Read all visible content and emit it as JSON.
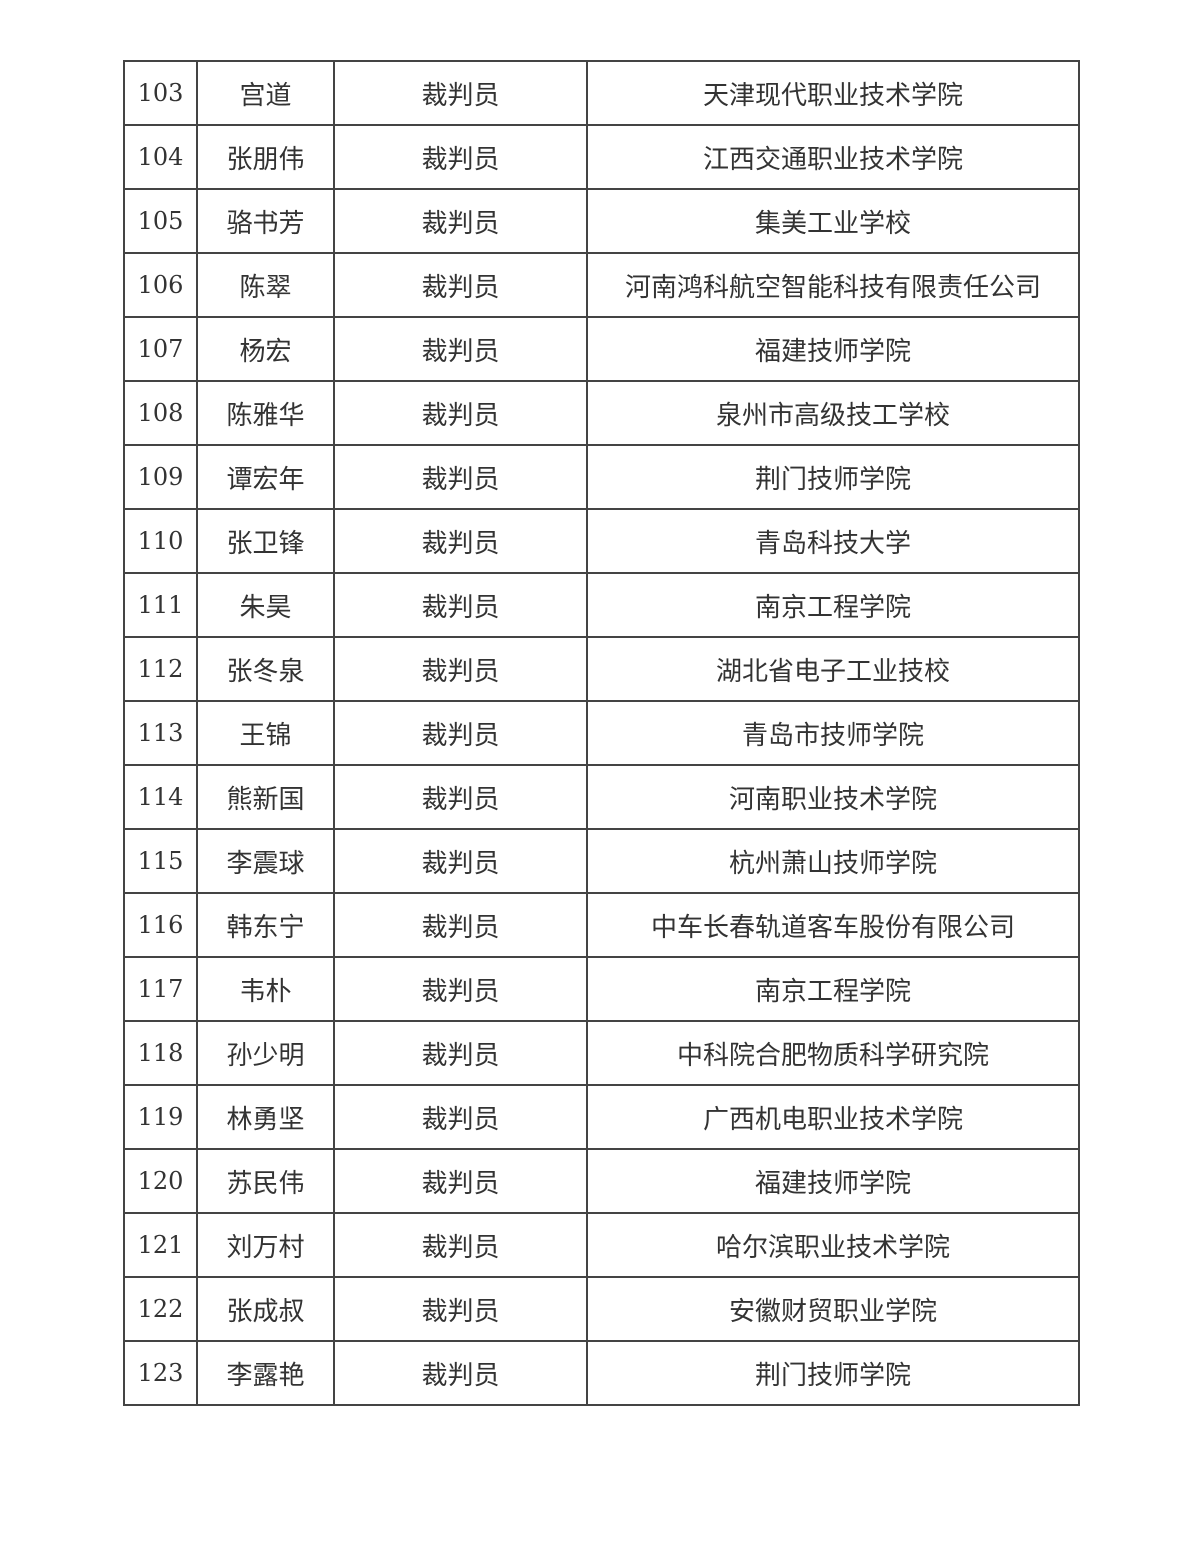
{
  "rows": [
    {
      "no": "103",
      "name": "宫道",
      "role": "裁判员",
      "org": "天津现代职业技术学院"
    },
    {
      "no": "104",
      "name": "张朋伟",
      "role": "裁判员",
      "org": "江西交通职业技术学院"
    },
    {
      "no": "105",
      "name": "骆书芳",
      "role": "裁判员",
      "org": "集美工业学校"
    },
    {
      "no": "106",
      "name": "陈翠",
      "role": "裁判员",
      "org": "河南鸿科航空智能科技有限责任公司"
    },
    {
      "no": "107",
      "name": "杨宏",
      "role": "裁判员",
      "org": "福建技师学院"
    },
    {
      "no": "108",
      "name": "陈雅华",
      "role": "裁判员",
      "org": "泉州市高级技工学校"
    },
    {
      "no": "109",
      "name": "谭宏年",
      "role": "裁判员",
      "org": "荆门技师学院"
    },
    {
      "no": "110",
      "name": "张卫锋",
      "role": "裁判员",
      "org": "青岛科技大学"
    },
    {
      "no": "111",
      "name": "朱昊",
      "role": "裁判员",
      "org": "南京工程学院"
    },
    {
      "no": "112",
      "name": "张冬泉",
      "role": "裁判员",
      "org": "湖北省电子工业技校"
    },
    {
      "no": "113",
      "name": "王锦",
      "role": "裁判员",
      "org": "青岛市技师学院"
    },
    {
      "no": "114",
      "name": "熊新国",
      "role": "裁判员",
      "org": "河南职业技术学院"
    },
    {
      "no": "115",
      "name": "李震球",
      "role": "裁判员",
      "org": "杭州萧山技师学院"
    },
    {
      "no": "116",
      "name": "韩东宁",
      "role": "裁判员",
      "org": "中车长春轨道客车股份有限公司"
    },
    {
      "no": "117",
      "name": "韦朴",
      "role": "裁判员",
      "org": "南京工程学院"
    },
    {
      "no": "118",
      "name": "孙少明",
      "role": "裁判员",
      "org": "中科院合肥物质科学研究院"
    },
    {
      "no": "119",
      "name": "林勇坚",
      "role": "裁判员",
      "org": "广西机电职业技术学院"
    },
    {
      "no": "120",
      "name": "苏民伟",
      "role": "裁判员",
      "org": "福建技师学院"
    },
    {
      "no": "121",
      "name": "刘万村",
      "role": "裁判员",
      "org": "哈尔滨职业技术学院"
    },
    {
      "no": "122",
      "name": "张成叔",
      "role": "裁判员",
      "org": "安徽财贸职业学院"
    },
    {
      "no": "123",
      "name": "李露艳",
      "role": "裁判员",
      "org": "荆门技师学院"
    }
  ]
}
